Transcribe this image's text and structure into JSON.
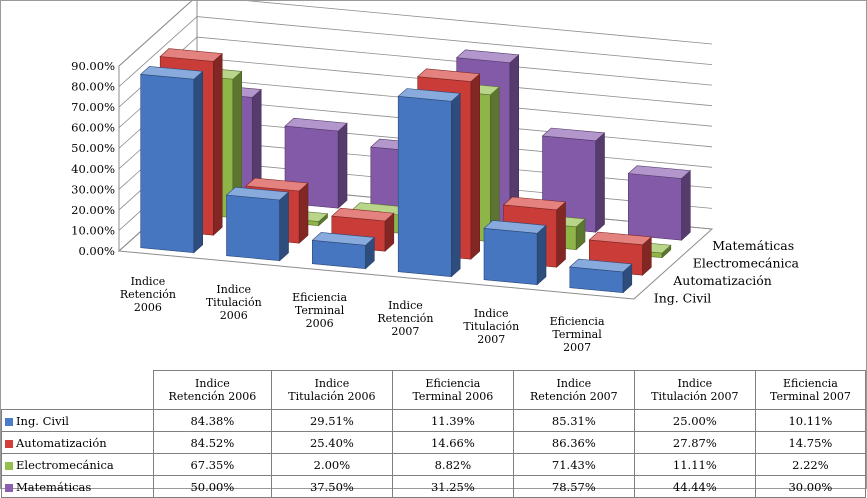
{
  "chart_data": {
    "type": "bar",
    "subtype": "3d-column",
    "categories": [
      [
        "Indice",
        "Retención",
        "2006"
      ],
      [
        "Indice",
        "Titulación",
        "2006"
      ],
      [
        "Eficiencia",
        "Terminal",
        "2006"
      ],
      [
        "Indice",
        "Retención",
        "2007"
      ],
      [
        "Indice",
        "Titulación",
        "2007"
      ],
      [
        "Eficiencia",
        "Terminal",
        "2007"
      ]
    ],
    "table_headers": [
      [
        "Indice",
        "Retención 2006"
      ],
      [
        "Indice",
        "Titulación 2006"
      ],
      [
        "Eficiencia",
        "Terminal 2006"
      ],
      [
        "Indice",
        "Retención 2007"
      ],
      [
        "Indice",
        "Titulación 2007"
      ],
      [
        "Eficiencia",
        "Terminal 2007"
      ]
    ],
    "series": [
      {
        "name": "Ing. Civil",
        "color": "#4a7cc9",
        "values": [
          84.38,
          29.51,
          11.39,
          85.31,
          25.0,
          10.11
        ],
        "labels": [
          "84.38%",
          "29.51%",
          "11.39%",
          "85.31%",
          "25.00%",
          "10.11%"
        ]
      },
      {
        "name": "Automatización",
        "color": "#d43f3a",
        "values": [
          84.52,
          25.4,
          14.66,
          86.36,
          27.87,
          14.75
        ],
        "labels": [
          "84.52%",
          "25.40%",
          "14.66%",
          "86.36%",
          "27.87%",
          "14.75%"
        ]
      },
      {
        "name": "Electromecánica",
        "color": "#94bf4b",
        "values": [
          67.35,
          2.0,
          8.82,
          71.43,
          11.11,
          2.22
        ],
        "labels": [
          "67.35%",
          "2.00%",
          "8.82%",
          "71.43%",
          "11.11%",
          "2.22%"
        ]
      },
      {
        "name": "Matemáticas",
        "color": "#8a5fb0",
        "values": [
          50.0,
          37.5,
          31.25,
          78.57,
          44.44,
          30.0
        ],
        "labels": [
          "50.00%",
          "37.50%",
          "31.25%",
          "78.57%",
          "44.44%",
          "30.00%"
        ]
      }
    ],
    "y_ticks": [
      "0.00%",
      "10.00%",
      "20.00%",
      "30.00%",
      "40.00%",
      "50.00%",
      "60.00%",
      "70.00%",
      "80.00%",
      "90.00%"
    ],
    "ylim": [
      0,
      90
    ],
    "grid": true,
    "legend": "data-table"
  }
}
